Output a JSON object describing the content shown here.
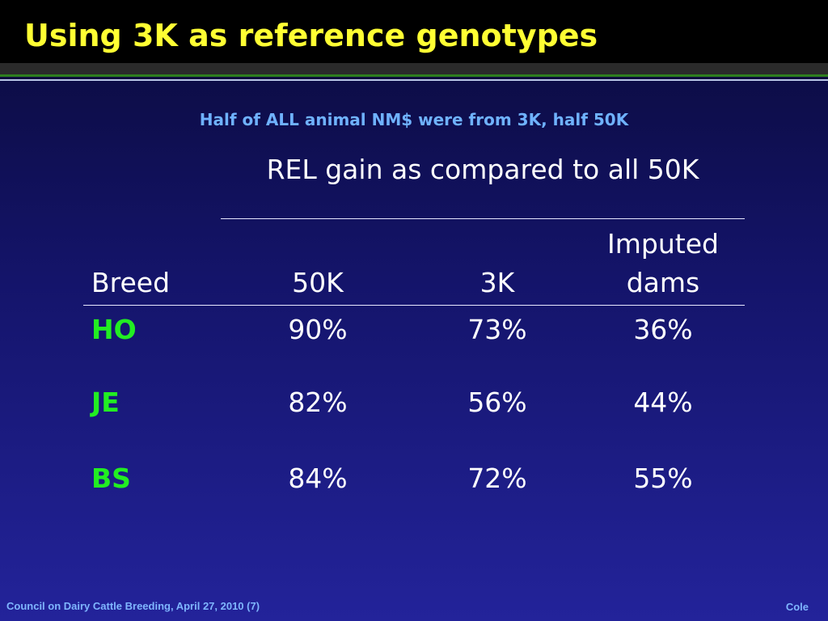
{
  "slide": {
    "title": "Using 3K as reference genotypes",
    "subtitle": "Half of ALL animal NM$ were from 3K, half 50K",
    "table_title": "REL gain as compared to all 50K"
  },
  "table": {
    "headers": {
      "breed": "Breed",
      "k50": "50K",
      "k3": "3K",
      "imputed_line1": "Imputed",
      "imputed_line2": "dams"
    },
    "rows": [
      {
        "breed": "HO",
        "k50": "90%",
        "k3": "73%",
        "imputed": "36%"
      },
      {
        "breed": "JE",
        "k50": "82%",
        "k3": "56%",
        "imputed": "44%"
      },
      {
        "breed": "BS",
        "k50": "84%",
        "k3": "72%",
        "imputed": "55%"
      }
    ]
  },
  "footer": {
    "left": "Council on Dairy Cattle Breeding, April 27, 2010 (7)",
    "right": "Cole"
  },
  "colors": {
    "title": "#ffff33",
    "subtitle": "#6fb2ff",
    "breed_label": "#22ee22",
    "footer": "#7fb6ff"
  }
}
